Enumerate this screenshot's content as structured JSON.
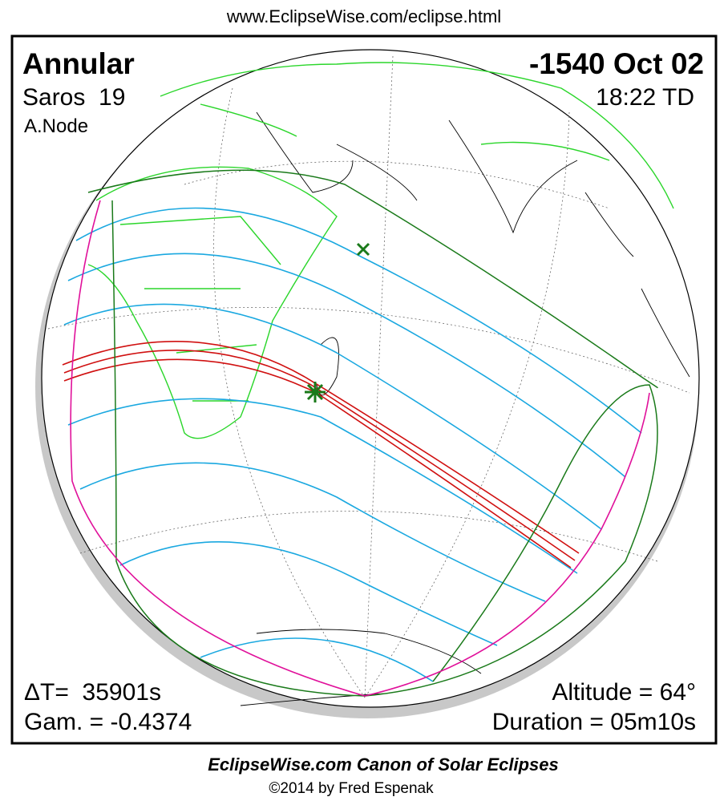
{
  "header": {
    "url": "www.EclipseWise.com/eclipse.html"
  },
  "eclipse": {
    "type": "Annular",
    "date": "-1540 Oct 02",
    "saros": "Saros  19",
    "time": "18:22 TD",
    "node": "A.Node",
    "delta_t": "ΔT=  35901s",
    "gamma": "Gam. = -0.4374",
    "altitude": "Altitude = 64°",
    "duration": "Duration = 05m10s"
  },
  "footer": {
    "title": "EclipseWise.com Canon of Solar Eclipses",
    "copyright": "©2014 by Fred Espenak"
  }
}
